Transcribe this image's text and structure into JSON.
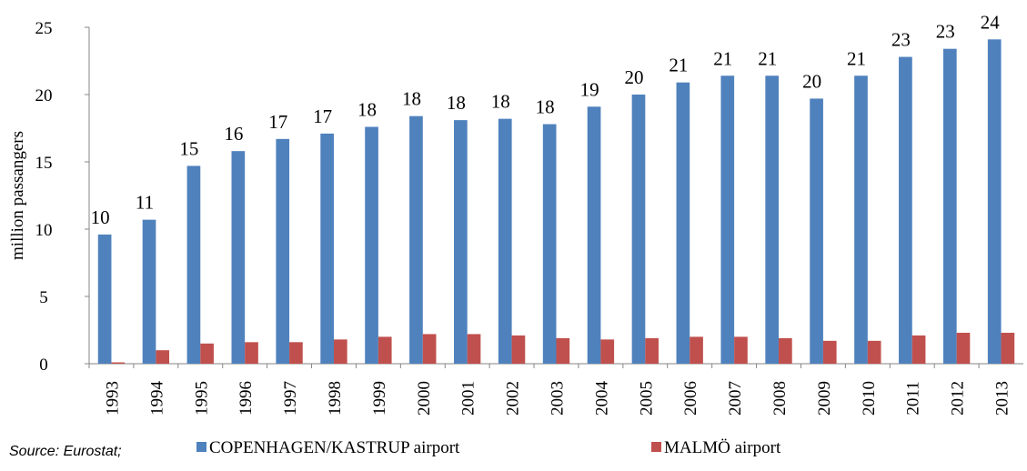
{
  "chart_data": {
    "type": "bar",
    "y_label": "million passangers",
    "source": "Source: Eurostat;",
    "categories": [
      "1993",
      "1994",
      "1995",
      "1996",
      "1997",
      "1998",
      "1999",
      "2000",
      "2001",
      "2002",
      "2003",
      "2004",
      "2005",
      "2006",
      "2007",
      "2008",
      "2009",
      "2010",
      "2011",
      "2012",
      "2013"
    ],
    "series": [
      {
        "name": "COPENHAGEN/KASTRUP airport",
        "color": "#4f81bd",
        "values": [
          9.6,
          10.7,
          14.7,
          15.8,
          16.7,
          17.1,
          17.6,
          18.4,
          18.1,
          18.2,
          17.8,
          19.1,
          20.0,
          20.9,
          21.4,
          21.4,
          19.7,
          21.4,
          22.8,
          23.4,
          24.1
        ],
        "value_labels": [
          "10",
          "11",
          "15",
          "16",
          "17",
          "17",
          "18",
          "18",
          "18",
          "18",
          "18",
          "19",
          "20",
          "21",
          "21",
          "21",
          "20",
          "21",
          "23",
          "23",
          "24"
        ]
      },
      {
        "name": "MALMÖ airport",
        "color": "#c0504d",
        "values": [
          0.1,
          1.0,
          1.5,
          1.6,
          1.6,
          1.8,
          2.0,
          2.2,
          2.2,
          2.1,
          1.9,
          1.8,
          1.9,
          2.0,
          2.0,
          1.9,
          1.7,
          1.7,
          2.1,
          2.3,
          2.3
        ]
      }
    ],
    "ylim": [
      0,
      25
    ],
    "yticks": [
      0,
      5,
      10,
      15,
      20,
      25
    ],
    "grid": false,
    "legend": "bottom"
  }
}
